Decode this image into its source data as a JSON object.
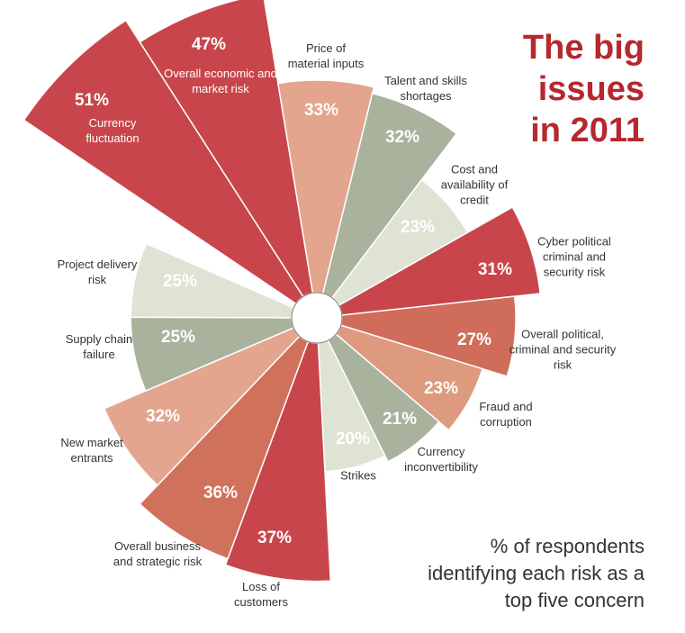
{
  "chart_data": {
    "type": "polar-area",
    "title": "The big issues in 2011",
    "subtitle": "% of respondents identifying each risk as a top five concern",
    "categories": [
      "Currency fluctuation",
      "Overall economic and market risk",
      "Price of material inputs",
      "Talent and skills shortages",
      "Cost and availability of credit",
      "Cyber political criminal and security risk",
      "Overall political, criminal and security risk",
      "Fraud and corruption",
      "Currency inconvertibility",
      "Strikes",
      "Loss of customers",
      "Overall business and strategic risk",
      "New market entrants",
      "Supply chain failure",
      "Project delivery risk"
    ],
    "values": [
      51,
      47,
      33,
      32,
      23,
      31,
      27,
      23,
      21,
      20,
      37,
      36,
      32,
      25,
      25
    ],
    "value_labels": [
      "51%",
      "47%",
      "33%",
      "32%",
      "23%",
      "31%",
      "27%",
      "23%",
      "21%",
      "20%",
      "37%",
      "36%",
      "32%",
      "25%",
      "25%"
    ],
    "colors": [
      "#c8464b",
      "#c8464b",
      "#e3a58e",
      "#a9b29c",
      "#dfe3d4",
      "#c8464b",
      "#cf6c5a",
      "#dd9a7f",
      "#a9b29c",
      "#dfe3d4",
      "#c8464b",
      "#d0715c",
      "#e3a58e",
      "#a9b29c",
      "#dfe3d4"
    ]
  }
}
